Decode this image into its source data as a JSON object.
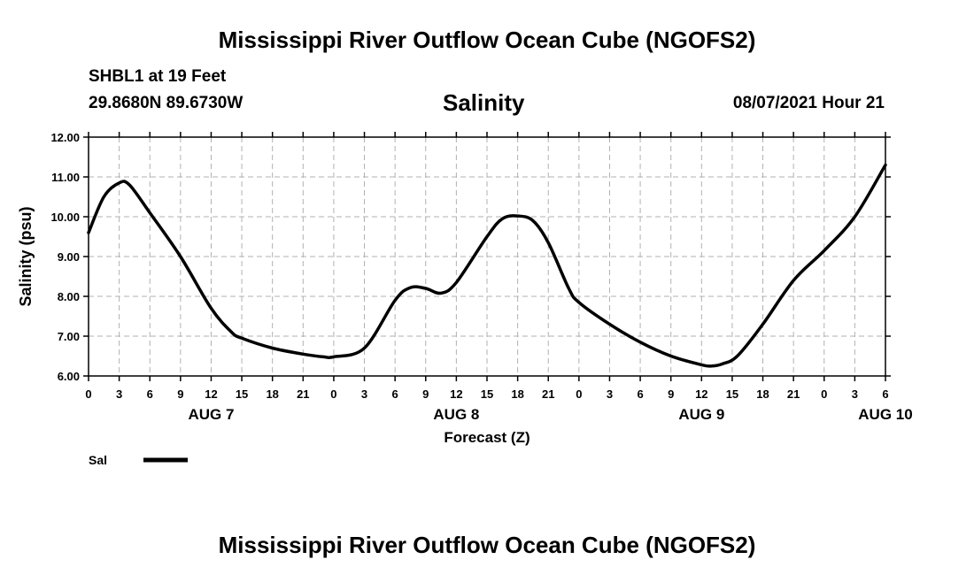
{
  "header": {
    "title": "Mississippi River Outflow Ocean Cube (NGOFS2)",
    "station": "SHBL1 at 19 Feet",
    "coords": "29.8680N  89.6730W",
    "variable": "Salinity",
    "datetime": "08/07/2021 Hour 21"
  },
  "footer": {
    "title": "Mississippi River Outflow Ocean Cube (NGOFS2)"
  },
  "chart_data": {
    "type": "line",
    "title": "Salinity",
    "xlabel": "Forecast (Z)",
    "ylabel": "Salinity (psu)",
    "ylim": [
      6,
      12
    ],
    "xlim": [
      0,
      78
    ],
    "yticks": [
      "6.00",
      "7.00",
      "8.00",
      "9.00",
      "10.00",
      "11.00",
      "12.00"
    ],
    "xticks": [
      "0",
      "3",
      "6",
      "9",
      "12",
      "15",
      "18",
      "21",
      "0",
      "3",
      "6",
      "9",
      "12",
      "15",
      "18",
      "21",
      "0",
      "3",
      "6",
      "9",
      "12",
      "15",
      "18",
      "21",
      "0",
      "3",
      "6"
    ],
    "days": [
      {
        "label": "AUG 7",
        "hour": 12
      },
      {
        "label": "AUG 8",
        "hour": 36
      },
      {
        "label": "AUG 9",
        "hour": 60
      },
      {
        "label": "AUG 10",
        "hour": 78
      }
    ],
    "grid": true,
    "series": [
      {
        "name": "Sal",
        "color": "#000000",
        "x": [
          0,
          1.5,
          3,
          4,
          6,
          9,
          12,
          14,
          15,
          18,
          21,
          23,
          24,
          27,
          30,
          31.5,
          33,
          34.5,
          36,
          39,
          40.5,
          42,
          43.5,
          45,
          47,
          48,
          51,
          54,
          57,
          60,
          61,
          62,
          63.5,
          66,
          69,
          72,
          75,
          78
        ],
        "values": [
          9.6,
          10.5,
          10.85,
          10.8,
          10.1,
          9.0,
          7.7,
          7.1,
          6.95,
          6.7,
          6.55,
          6.48,
          6.48,
          6.7,
          7.9,
          8.22,
          8.2,
          8.08,
          8.35,
          9.5,
          9.95,
          10.02,
          9.9,
          9.35,
          8.2,
          7.85,
          7.3,
          6.85,
          6.5,
          6.28,
          6.25,
          6.3,
          6.5,
          7.3,
          8.4,
          9.15,
          10.0,
          11.3
        ]
      }
    ]
  },
  "legend": {
    "label": "Sal"
  }
}
